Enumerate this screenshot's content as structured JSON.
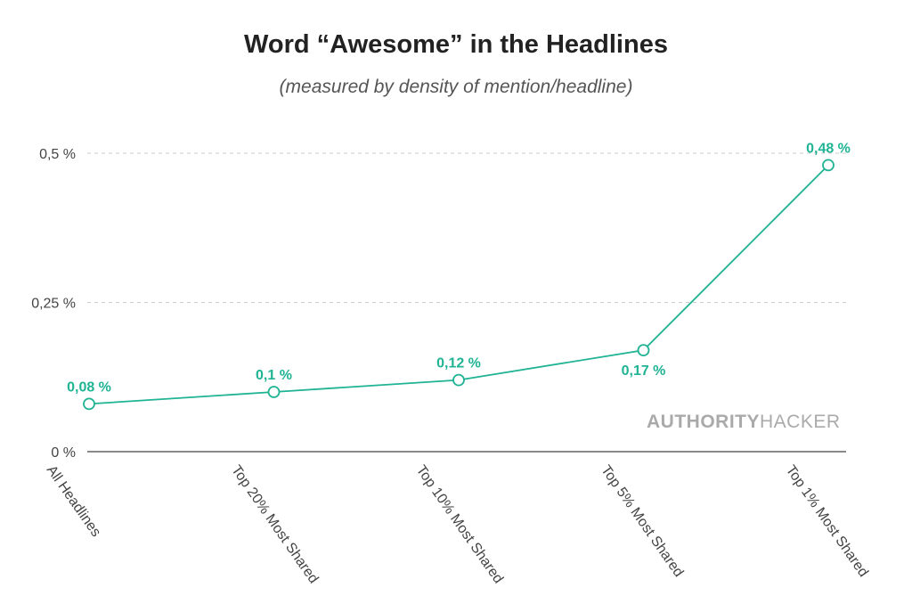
{
  "chart_data": {
    "type": "line",
    "title": "Word “Awesome” in the Headlines",
    "subtitle": "(measured by density of mention/headline)",
    "categories": [
      "All Headlines",
      "Top 20% Most Shared",
      "Top 10% Most Shared",
      "Top 5% Most Shared",
      "Top 1% Most Shared"
    ],
    "series": [
      {
        "values": [
          0.08,
          0.1,
          0.12,
          0.17,
          0.48
        ]
      }
    ],
    "data_labels": [
      "0,08 %",
      "0,1 %",
      "0,12 %",
      "0,17 %",
      "0,48 %"
    ],
    "y_ticks": [
      {
        "value": 0,
        "label": "0 %"
      },
      {
        "value": 0.25,
        "label": "0,25 %"
      },
      {
        "value": 0.5,
        "label": "0,5 %"
      }
    ],
    "ylim": [
      0,
      0.5
    ],
    "xlabel": "",
    "ylabel": "",
    "grid": true,
    "legend": "none",
    "colors": {
      "line": "#20b394",
      "grid": "#cccccc",
      "axis": "#444444"
    }
  },
  "brand": {
    "bold": "AUTHORITY",
    "light": "HACKER"
  }
}
